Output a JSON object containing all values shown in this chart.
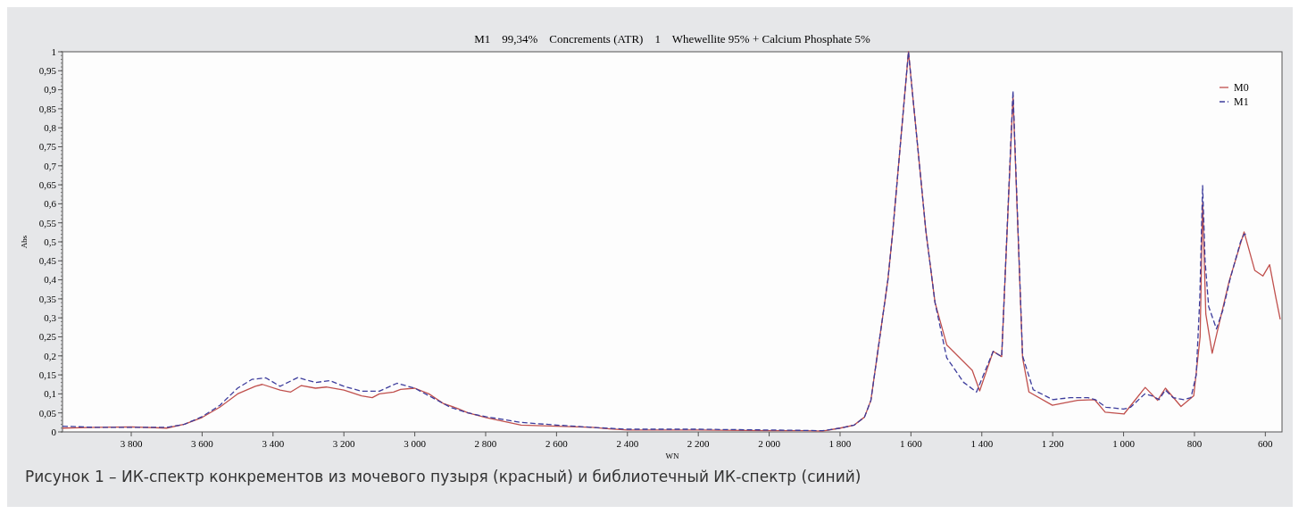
{
  "chart_data": {
    "type": "line",
    "title": "M1    99,34%    Concrements (ATR)    1    Whewellite 95% + Calcium Phosphate 5%",
    "xlabel": "WN",
    "ylabel": "Abs",
    "annotations": [
      "Рисунок 1 – ИК-спектр конкрементов из мочевого пузыря (красный) и библиотечный ИК-спектр (синий)"
    ],
    "xlim": [
      3994,
      553
    ],
    "ylim": [
      0,
      1
    ],
    "xticks": [
      {
        "value": 3800,
        "label": "3 800"
      },
      {
        "value": 3600,
        "label": "3 600"
      },
      {
        "value": 3400,
        "label": "3 400"
      },
      {
        "value": 3200,
        "label": "3 200"
      },
      {
        "value": 3000,
        "label": "3 000"
      },
      {
        "value": 2800,
        "label": "2 800"
      },
      {
        "value": 2600,
        "label": "2 600"
      },
      {
        "value": 2400,
        "label": "2 400"
      },
      {
        "value": 2200,
        "label": "2 200"
      },
      {
        "value": 2000,
        "label": "2 000"
      },
      {
        "value": 1800,
        "label": "1 800"
      },
      {
        "value": 1600,
        "label": "1 600"
      },
      {
        "value": 1400,
        "label": "1 400"
      },
      {
        "value": 1200,
        "label": "1 200"
      },
      {
        "value": 1000,
        "label": "1 000"
      },
      800,
      600
    ],
    "yticks": [
      0,
      {
        "value": 0.05,
        "label": "0,05"
      },
      {
        "value": 0.1,
        "label": "0,1"
      },
      {
        "value": 0.15,
        "label": "0,15"
      },
      {
        "value": 0.2,
        "label": "0,2"
      },
      {
        "value": 0.25,
        "label": "0,25"
      },
      {
        "value": 0.3,
        "label": "0,3"
      },
      {
        "value": 0.35,
        "label": "0,35"
      },
      {
        "value": 0.4,
        "label": "0,4"
      },
      {
        "value": 0.45,
        "label": "0,45"
      },
      {
        "value": 0.5,
        "label": "0,5"
      },
      {
        "value": 0.55,
        "label": "0,55"
      },
      {
        "value": 0.6,
        "label": "0,6"
      },
      {
        "value": 0.65,
        "label": "0,65"
      },
      {
        "value": 0.7,
        "label": "0,7"
      },
      {
        "value": 0.75,
        "label": "0,75"
      },
      {
        "value": 0.8,
        "label": "0,8"
      },
      {
        "value": 0.85,
        "label": "0,85"
      },
      {
        "value": 0.9,
        "label": "0,9"
      },
      {
        "value": 0.95,
        "label": "0,95"
      },
      1
    ],
    "grid": false,
    "legend": "top right",
    "marker": "none",
    "series": [
      {
        "name": "M0",
        "color": "#c0504d",
        "line_style": "solid",
        "x": [
          3994,
          3900,
          3800,
          3700,
          3650,
          3600,
          3550,
          3500,
          3450,
          3430,
          3380,
          3350,
          3320,
          3280,
          3250,
          3200,
          3150,
          3120,
          3100,
          3060,
          3040,
          3000,
          2960,
          2920,
          2880,
          2850,
          2800,
          2750,
          2700,
          2600,
          2500,
          2450,
          2400,
          2200,
          2000,
          1900,
          1850,
          1800,
          1760,
          1731,
          1713,
          1665,
          1651,
          1607,
          1558,
          1532,
          1499,
          1427,
          1406,
          1368,
          1344,
          1312,
          1285,
          1267,
          1201,
          1130,
          1082,
          1052,
          999,
          939,
          904,
          882,
          838,
          802,
          784,
          777,
          768,
          750,
          702,
          660,
          630,
          607,
          588,
          570,
          558
        ],
        "values": [
          0.01,
          0.012,
          0.013,
          0.01,
          0.02,
          0.038,
          0.065,
          0.1,
          0.12,
          0.125,
          0.11,
          0.105,
          0.122,
          0.115,
          0.118,
          0.11,
          0.095,
          0.09,
          0.1,
          0.105,
          0.112,
          0.115,
          0.1,
          0.075,
          0.062,
          0.05,
          0.038,
          0.028,
          0.018,
          0.015,
          0.012,
          0.008,
          0.005,
          0.005,
          0.003,
          0.003,
          0.002,
          0.01,
          0.018,
          0.039,
          0.083,
          0.4,
          0.53,
          1.0,
          0.53,
          0.34,
          0.229,
          0.162,
          0.108,
          0.212,
          0.198,
          0.883,
          0.195,
          0.105,
          0.07,
          0.083,
          0.085,
          0.052,
          0.047,
          0.117,
          0.083,
          0.115,
          0.067,
          0.095,
          0.25,
          0.603,
          0.31,
          0.207,
          0.397,
          0.526,
          0.425,
          0.41,
          0.44,
          0.352,
          0.296
        ]
      },
      {
        "name": "M1",
        "color": "#3c3c9c",
        "line_style": "dashed",
        "x": [
          3994,
          3900,
          3800,
          3700,
          3650,
          3600,
          3550,
          3500,
          3460,
          3420,
          3380,
          3330,
          3280,
          3240,
          3200,
          3150,
          3100,
          3050,
          3000,
          2950,
          2900,
          2850,
          2800,
          2700,
          2600,
          2500,
          2400,
          2200,
          2000,
          1900,
          1850,
          1800,
          1760,
          1731,
          1713,
          1665,
          1651,
          1607,
          1558,
          1532,
          1499,
          1451,
          1415,
          1368,
          1344,
          1312,
          1285,
          1255,
          1200,
          1150,
          1100,
          1080,
          1050,
          1000,
          980,
          940,
          920,
          900,
          882,
          860,
          830,
          810,
          795,
          785,
          777,
          770,
          760,
          738,
          720,
          700,
          670,
          660,
          655
        ],
        "values": [
          0.015,
          0.012,
          0.012,
          0.012,
          0.02,
          0.04,
          0.07,
          0.115,
          0.138,
          0.142,
          0.12,
          0.143,
          0.13,
          0.135,
          0.12,
          0.107,
          0.107,
          0.128,
          0.115,
          0.09,
          0.065,
          0.05,
          0.04,
          0.025,
          0.018,
          0.012,
          0.007,
          0.007,
          0.005,
          0.004,
          0.003,
          0.01,
          0.018,
          0.039,
          0.083,
          0.4,
          0.53,
          1.0,
          0.53,
          0.34,
          0.195,
          0.13,
          0.105,
          0.212,
          0.198,
          0.897,
          0.2,
          0.111,
          0.085,
          0.09,
          0.09,
          0.085,
          0.065,
          0.06,
          0.065,
          0.1,
          0.095,
          0.085,
          0.11,
          0.09,
          0.085,
          0.09,
          0.15,
          0.35,
          0.648,
          0.45,
          0.33,
          0.271,
          0.32,
          0.4,
          0.5,
          0.52,
          0.52
        ]
      }
    ]
  }
}
